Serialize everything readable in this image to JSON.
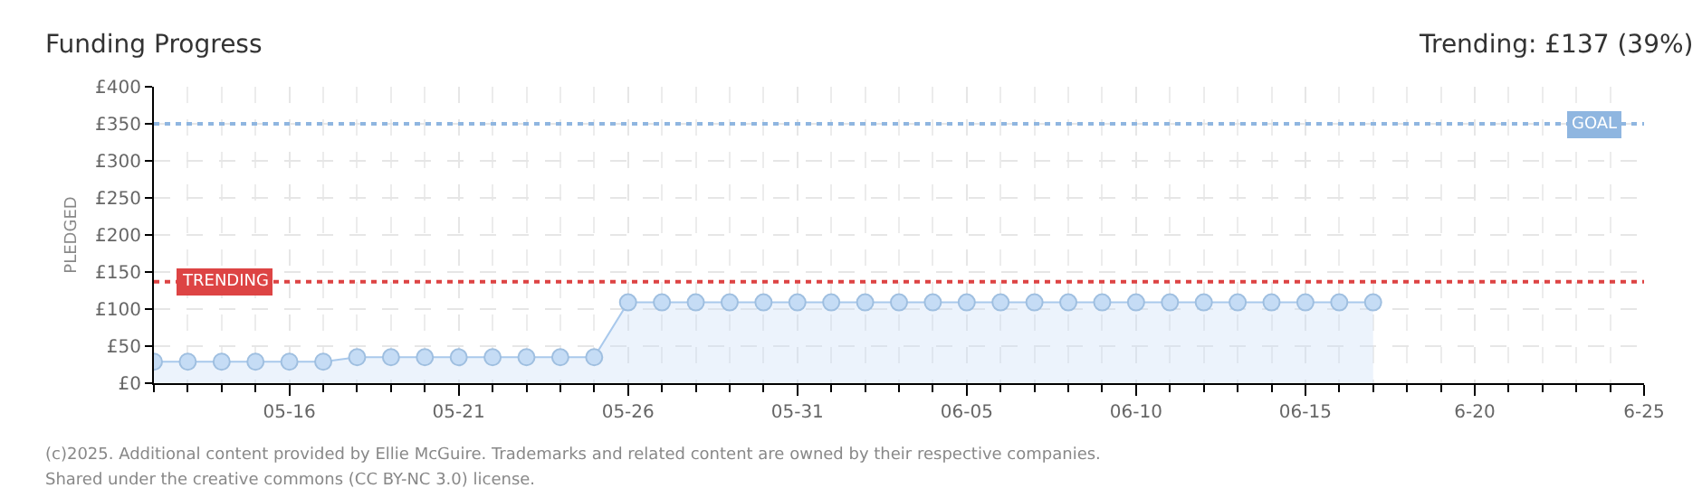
{
  "chart_data": {
    "type": "area",
    "title": "Funding Progress",
    "subtitle": "Trending: £137 (39%)",
    "ylabel": "PLEDGED",
    "x": [
      "--05-12",
      "--05-13",
      "--05-14",
      "--05-15",
      "--05-16",
      "--05-17",
      "--05-18",
      "--05-19",
      "--05-20",
      "--05-21",
      "--05-22",
      "--05-23",
      "--05-24",
      "--05-25",
      "--05-26",
      "--05-27",
      "--05-28",
      "--05-29",
      "--05-30",
      "--05-31",
      "--06-01",
      "--06-02",
      "--06-03",
      "--06-04",
      "--06-05",
      "--06-06",
      "--06-07",
      "--06-08",
      "--06-09",
      "--06-10",
      "--06-11",
      "--06-12",
      "--06-13",
      "--06-14",
      "--06-15",
      "--06-16",
      "--06-17"
    ],
    "series": [
      {
        "color": "#a9c9ec",
        "values": [
          29,
          29,
          29,
          29,
          29,
          29,
          35,
          35,
          35,
          35,
          35,
          35,
          35,
          35,
          109,
          109,
          109,
          109,
          109,
          109,
          109,
          109,
          109,
          109,
          109,
          109,
          109,
          109,
          109,
          109,
          109,
          109,
          109,
          109,
          109,
          109,
          109
        ]
      }
    ],
    "xlim": [
      "--05-12",
      "--06-25"
    ],
    "xticks": [
      {
        "value": "--05-16",
        "label": "05-16"
      },
      {
        "value": "--05-21",
        "label": "05-21"
      },
      {
        "value": "--05-26",
        "label": "05-26"
      },
      {
        "value": "--05-31",
        "label": "05-31"
      },
      {
        "value": "--06-05",
        "label": "06-05"
      },
      {
        "value": "--06-10",
        "label": "06-10"
      },
      {
        "value": "--06-15",
        "label": "06-15"
      },
      {
        "value": "--06-20",
        "label": "6-20"
      },
      {
        "value": "--06-25",
        "label": "6-25"
      }
    ],
    "ylim": [
      0,
      400
    ],
    "yticks": [
      {
        "value": 0,
        "label": "£0"
      },
      {
        "value": 50,
        "label": "£50"
      },
      {
        "value": 100,
        "label": "£100"
      },
      {
        "value": 150,
        "label": "£150"
      },
      {
        "value": 200,
        "label": "£200"
      },
      {
        "value": 250,
        "label": "£250"
      },
      {
        "value": 300,
        "label": "£300"
      },
      {
        "value": 350,
        "label": "£350"
      },
      {
        "value": 400,
        "label": "£400"
      }
    ],
    "ref_lines": [
      {
        "axis": "y",
        "value": 350,
        "label": "GOAL",
        "color": "#8fb6e0",
        "line_style": "dotted"
      },
      {
        "axis": "y",
        "value": 137,
        "label": "TRENDING",
        "color": "#dd4444",
        "line_style": "dotted"
      }
    ],
    "grid": true,
    "marker": "circle",
    "annotations": [
      "(c)2025. Additional content provided by Ellie McGuire. Trademarks and related content are owned by their respective companies.",
      "Shared under the creative commons (CC BY-NC 3.0) license."
    ]
  }
}
